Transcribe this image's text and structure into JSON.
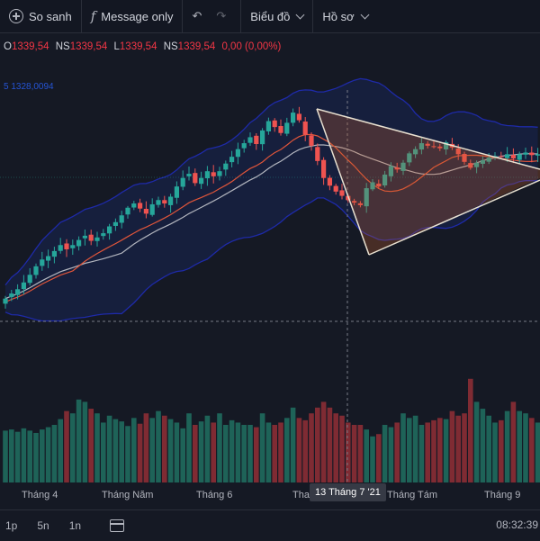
{
  "toolbar": {
    "compare_label": "So sanh",
    "message_label": "Message only",
    "chart_label": "Biểu đồ",
    "profile_label": "Hồ sơ"
  },
  "legend": {
    "o_label": "O",
    "o_value": "1339,54",
    "h_label": "NS",
    "h_value": "1339,54",
    "l_label": "L",
    "l_value": "1339,54",
    "c_label": "NS",
    "c_value": "1339,54",
    "change": "0,00 (0,00%)"
  },
  "ma_label": "5  1328,0094",
  "xaxis": {
    "labels": [
      "Tháng 4",
      "Tháng Năm",
      "Tháng 6",
      "Tha",
      "Tháng Tám",
      "Tháng 9"
    ],
    "crosshair_label": "13 Tháng 7 '21"
  },
  "bottombar": {
    "ranges": [
      "1p",
      "5n",
      "1n"
    ],
    "clock": "08:32:39"
  },
  "colors": {
    "up": "#26a69a",
    "down": "#ef5350",
    "bb": "#1e2aa8",
    "ma_fast": "#e0553a",
    "ma_slow": "#b2b5be",
    "triangle": "#e8e0d0"
  },
  "chart_data": {
    "type": "candlestick",
    "title": "",
    "x_ticks": [
      "Tháng 4",
      "Tháng Năm",
      "Tháng 6",
      "Tha",
      "Tháng Tám",
      "Tháng 9"
    ],
    "close": [
      1120,
      1126,
      1131,
      1139,
      1148,
      1158,
      1166,
      1170,
      1176,
      1183,
      1178,
      1183,
      1189,
      1194,
      1188,
      1192,
      1197,
      1205,
      1210,
      1218,
      1227,
      1232,
      1226,
      1220,
      1231,
      1236,
      1232,
      1240,
      1252,
      1262,
      1267,
      1256,
      1262,
      1270,
      1264,
      1270,
      1279,
      1287,
      1296,
      1303,
      1310,
      1302,
      1318,
      1329,
      1322,
      1315,
      1327,
      1339,
      1330,
      1313,
      1300,
      1282,
      1262,
      1253,
      1246,
      1241,
      1236,
      1233,
      1230,
      1250,
      1257,
      1252,
      1266,
      1276,
      1272,
      1280,
      1291,
      1296,
      1303,
      1300,
      1299,
      1297,
      1304,
      1298,
      1290,
      1281,
      1274,
      1280,
      1283,
      1286,
      1288,
      1287,
      1290,
      1285,
      1290,
      1292,
      1289,
      1290
    ],
    "volume": [
      0.45,
      0.46,
      0.44,
      0.47,
      0.45,
      0.43,
      0.46,
      0.48,
      0.5,
      0.55,
      0.62,
      0.6,
      0.72,
      0.7,
      0.64,
      0.6,
      0.52,
      0.58,
      0.55,
      0.53,
      0.49,
      0.56,
      0.51,
      0.6,
      0.56,
      0.62,
      0.58,
      0.55,
      0.52,
      0.47,
      0.6,
      0.5,
      0.53,
      0.58,
      0.52,
      0.6,
      0.5,
      0.54,
      0.52,
      0.5,
      0.5,
      0.48,
      0.6,
      0.52,
      0.5,
      0.52,
      0.56,
      0.65,
      0.56,
      0.54,
      0.6,
      0.65,
      0.7,
      0.65,
      0.6,
      0.58,
      0.52,
      0.5,
      0.5,
      0.46,
      0.4,
      0.42,
      0.5,
      0.48,
      0.52,
      0.6,
      0.56,
      0.58,
      0.5,
      0.52,
      0.54,
      0.56,
      0.55,
      0.62,
      0.58,
      0.6,
      0.9,
      0.7,
      0.64,
      0.58,
      0.52,
      0.54,
      0.62,
      0.7,
      0.62,
      0.6,
      0.56,
      0.52
    ],
    "crosshair": "13 Tháng 7 '21",
    "overlays": [
      "bollinger-bands",
      "ma-fast",
      "ma-slow",
      "triangle-pattern"
    ]
  }
}
